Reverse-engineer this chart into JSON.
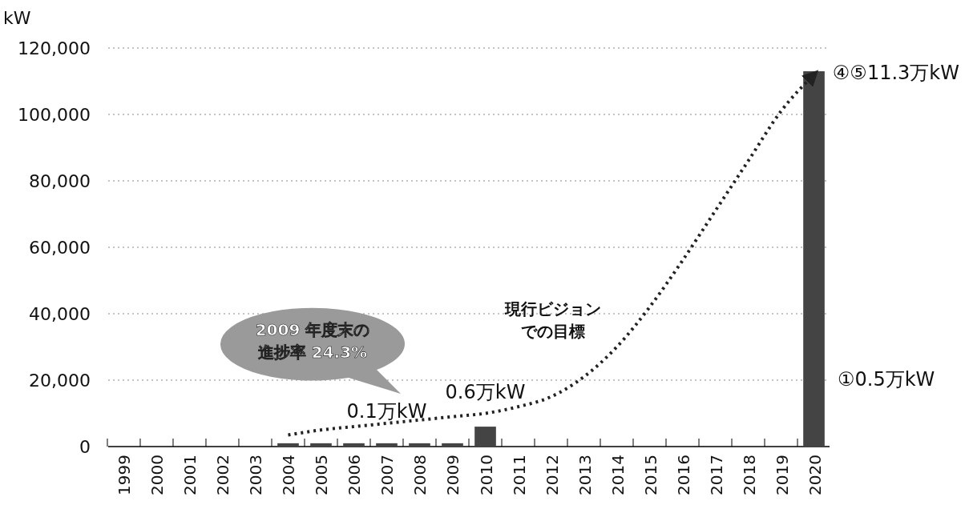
{
  "chart_data": {
    "type": "bar",
    "ylabel": "kW",
    "categories": [
      "1999",
      "2000",
      "2001",
      "2002",
      "2003",
      "2004",
      "2005",
      "2006",
      "2007",
      "2008",
      "2009",
      "2010",
      "2011",
      "2012",
      "2013",
      "2014",
      "2015",
      "2016",
      "2017",
      "2018",
      "2019",
      "2020"
    ],
    "series": [
      {
        "color": "#444444",
        "values": [
          null,
          null,
          null,
          null,
          null,
          1000,
          1000,
          1000,
          1000,
          1000,
          1000,
          6000,
          null,
          null,
          null,
          null,
          null,
          null,
          null,
          null,
          null,
          113000
        ]
      },
      {
        "type": "line",
        "color": "#222222",
        "line_style": "dotted",
        "values": [
          null,
          null,
          null,
          null,
          null,
          3500,
          5000,
          6000,
          7000,
          8000,
          9000,
          10000,
          12000,
          15000,
          21000,
          30000,
          42000,
          56000,
          71000,
          86000,
          101000,
          112000
        ]
      }
    ],
    "ylim": [
      0,
      120000
    ],
    "yticks": [
      0,
      {
        "value": 20000,
        "label": "20,000"
      },
      {
        "value": 40000,
        "label": "40,000"
      },
      {
        "value": 60000,
        "label": "60,000"
      },
      {
        "value": 80000,
        "label": "80,000"
      },
      {
        "value": 100000,
        "label": "100,000"
      },
      {
        "value": 120000,
        "label": "120,000"
      }
    ],
    "grid": "y",
    "annotations": [
      "2009 年度末の",
      "進捗率 24.3%",
      "現行ビジョン",
      "での目標",
      {
        "text": "0.1万kW",
        "x": "2007",
        "y": 1000
      },
      {
        "text": "0.6万kW",
        "x": "2010",
        "y": 6000
      },
      {
        "text": "④⑤11.3万kW",
        "x": "2020",
        "y": 113000
      },
      "①0.5万kW"
    ]
  }
}
